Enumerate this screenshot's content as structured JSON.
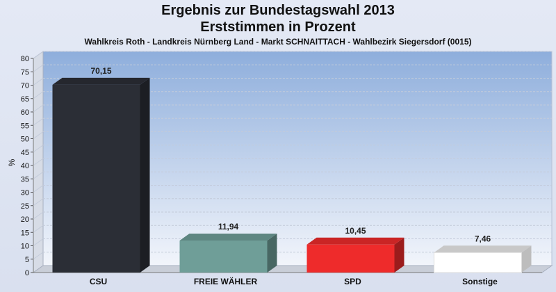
{
  "chart_data": {
    "type": "bar",
    "title": "Ergebnis zur Bundestagswahl 2013",
    "subtitle": "Erststimmen in Prozent",
    "caption": "Wahlkreis Roth - Landkreis Nürnberg Land - Markt SCHNAITTACH - Wahlbezirk Siegersdorf (0015)",
    "xlabel": "",
    "ylabel": "%",
    "ylim": [
      0,
      80
    ],
    "yticks": [
      "0",
      "5",
      "10",
      "15",
      "20",
      "25",
      "30",
      "35",
      "40",
      "45",
      "50",
      "55",
      "60",
      "65",
      "70",
      "75",
      "80"
    ],
    "categories": [
      "CSU",
      "FREIE WÄHLER",
      "SPD",
      "Sonstige"
    ],
    "values": [
      70.15,
      11.94,
      10.45,
      7.46
    ],
    "value_labels": [
      "70,15",
      "11,94",
      "10,45",
      "7,46"
    ],
    "colors": [
      "#2b2e36",
      "#6f9e98",
      "#ee2b2b",
      "#ffffff"
    ],
    "grid": true,
    "legend": "none",
    "style": "3d"
  }
}
